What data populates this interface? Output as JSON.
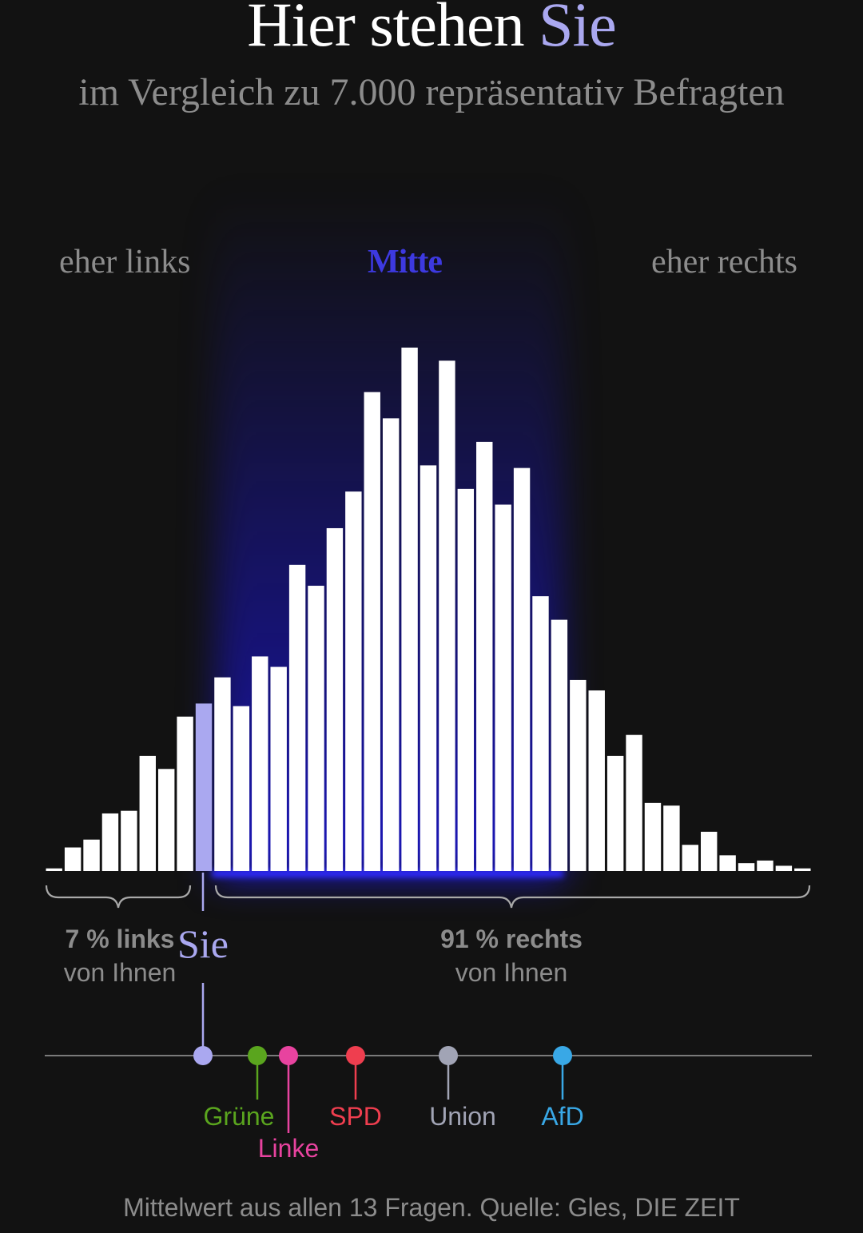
{
  "colors": {
    "background": "#121212",
    "bar": "#ffffff",
    "you": "#aaa8f0",
    "mitte": "#3d39e0",
    "muted": "#8c8c8c"
  },
  "header": {
    "title_prefix": "Hier stehen ",
    "title_highlight": "Sie",
    "subtitle": "im Vergleich zu 7.000 repräsentativ Befragten"
  },
  "axis": {
    "left": "eher links",
    "center": "Mitte",
    "right": "eher rechts"
  },
  "summary": {
    "left_value": "7 %",
    "left_word": "links",
    "left_sub": "von Ihnen",
    "you": "Sie",
    "right_value": "91 %",
    "right_word": "rechts",
    "right_sub": "von Ihnen"
  },
  "chart_data": {
    "type": "bar",
    "highlight_index": 8,
    "values": [
      1,
      9,
      12,
      22,
      23,
      44,
      39,
      59,
      64,
      74,
      63,
      82,
      78,
      117,
      109,
      131,
      145,
      183,
      173,
      200,
      155,
      195,
      146,
      164,
      140,
      154,
      105,
      96,
      73,
      69,
      44,
      52,
      26,
      25,
      10,
      15,
      6,
      3,
      4,
      2,
      1
    ],
    "ylim": [
      0,
      200
    ]
  },
  "parties": [
    {
      "name": "Grüne",
      "color": "#5aa51e",
      "pos": 322,
      "label_row": 1
    },
    {
      "name": "Linke",
      "color": "#e8439f",
      "pos": 361,
      "label_row": 2
    },
    {
      "name": "SPD",
      "color": "#ef3e4f",
      "pos": 445,
      "label_row": 1
    },
    {
      "name": "Union",
      "color": "#a1a4b5",
      "pos": 561,
      "label_row": 1
    },
    {
      "name": "AfD",
      "color": "#39a8e6",
      "pos": 704,
      "label_row": 1
    }
  ],
  "you_position": 254,
  "footer": "Mittelwert aus allen 13 Fragen. Quelle: Gles, DIE ZEIT"
}
